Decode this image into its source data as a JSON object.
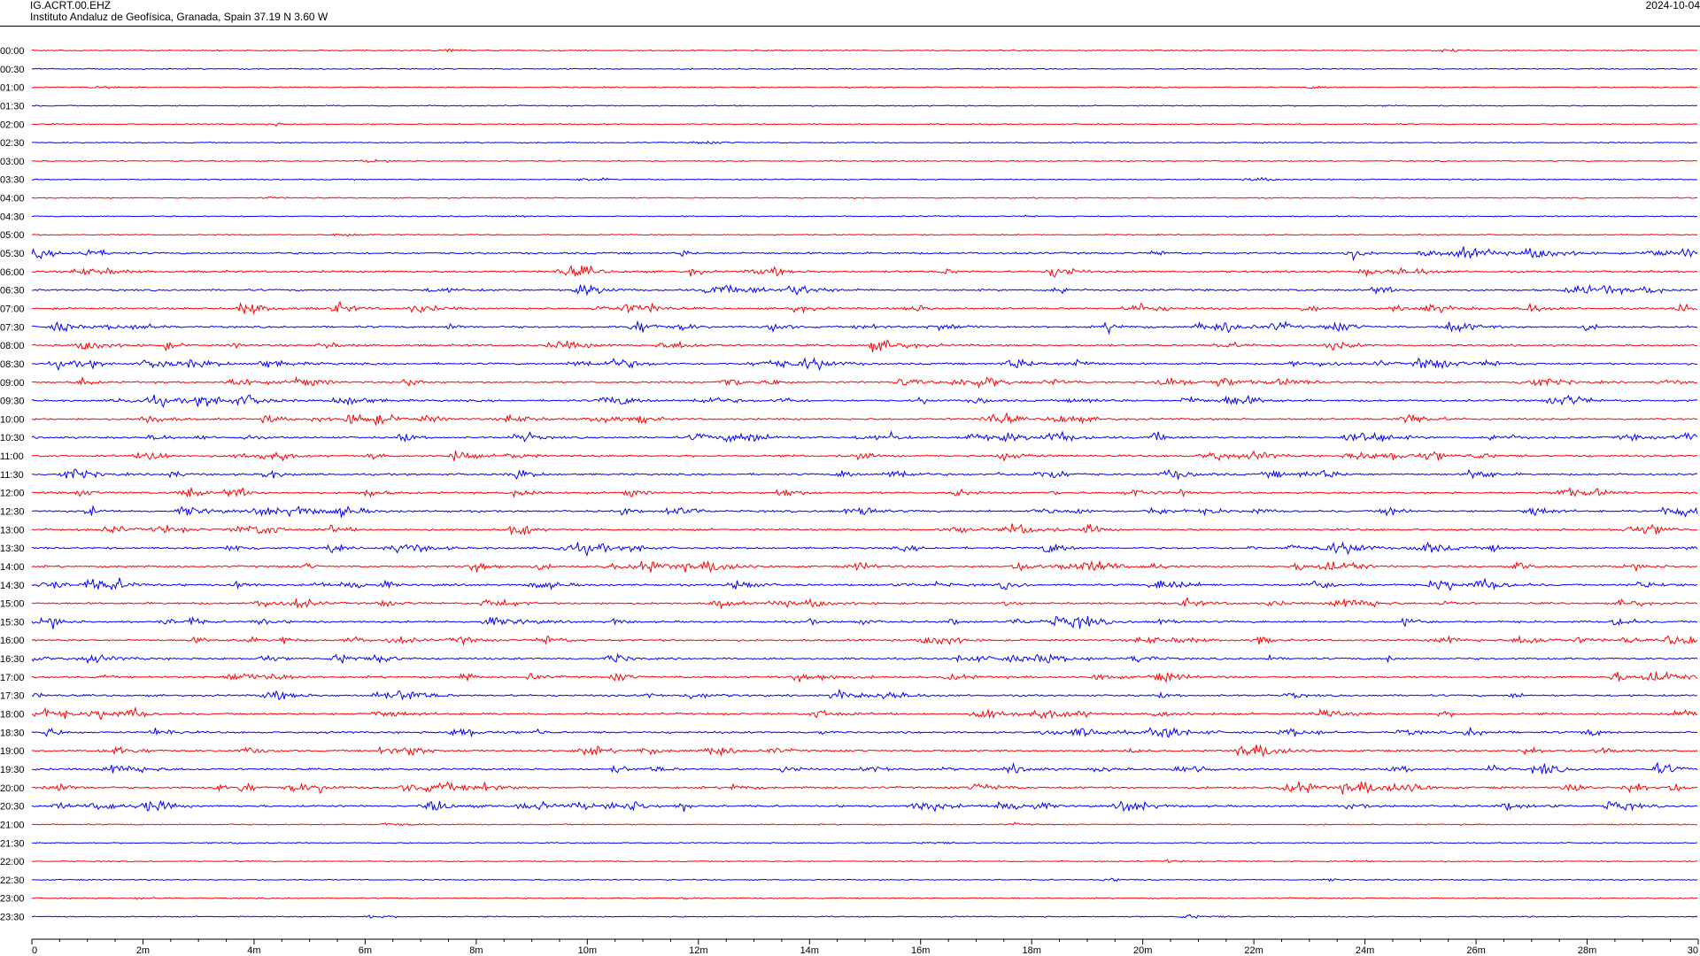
{
  "header": {
    "station": "IG.ACRT.00.EHZ",
    "institute": "Instituto Andaluz de Geofísica, Granada, Spain  37.19 N 3.60 W",
    "date": "2024-10-04"
  },
  "chart_data": {
    "type": "line",
    "title": "",
    "xlabel": "",
    "ylabel": "",
    "row_labels": [
      "00:00",
      "00:30",
      "01:00",
      "01:30",
      "02:00",
      "02:30",
      "03:00",
      "03:30",
      "04:00",
      "04:30",
      "05:00",
      "05:30",
      "06:00",
      "06:30",
      "07:00",
      "07:30",
      "08:00",
      "08:30",
      "09:00",
      "09:30",
      "10:00",
      "10:30",
      "11:00",
      "11:30",
      "12:00",
      "12:30",
      "13:00",
      "13:30",
      "14:00",
      "14:30",
      "15:00",
      "15:30",
      "16:00",
      "16:30",
      "17:00",
      "17:30",
      "18:00",
      "18:30",
      "19:00",
      "19:30",
      "20:00",
      "20:30",
      "21:00",
      "21:30",
      "22:00",
      "22:30",
      "23:00",
      "23:30"
    ],
    "x_ticks": [
      "0",
      "2m",
      "4m",
      "6m",
      "8m",
      "10m",
      "12m",
      "14m",
      "16m",
      "18m",
      "20m",
      "22m",
      "24m",
      "26m",
      "28m",
      "30"
    ],
    "x_range_minutes": [
      0,
      30
    ],
    "colors": {
      "odd_rows": "#ff0000",
      "even_rows": "#0000ff"
    },
    "grid": false
  }
}
